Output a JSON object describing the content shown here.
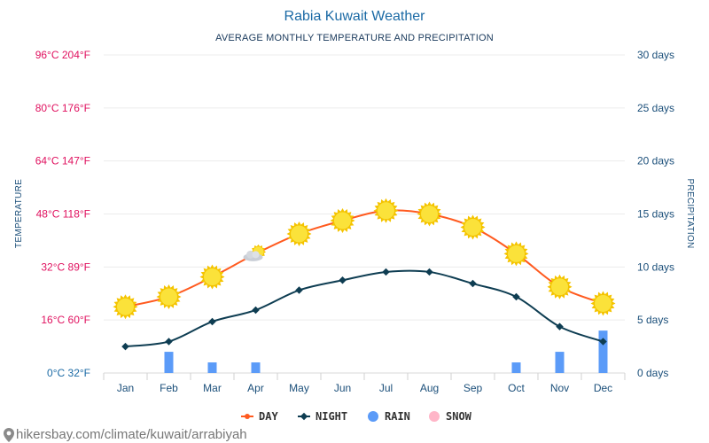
{
  "chart_data": {
    "type": "line",
    "title": "Rabia Kuwait Weather",
    "subtitle": "AVERAGE MONTHLY TEMPERATURE AND PRECIPITATION",
    "ylabel_left": "TEMPERATURE",
    "ylabel_right": "PRECIPITATION",
    "categories": [
      "Jan",
      "Feb",
      "Mar",
      "Apr",
      "May",
      "Jun",
      "Jul",
      "Aug",
      "Sep",
      "Oct",
      "Nov",
      "Dec"
    ],
    "left_axis": {
      "ylim": [
        0,
        96
      ],
      "ticks": [
        0,
        16,
        32,
        48,
        64,
        80,
        96
      ],
      "tick_labels": [
        "0°C 32°F",
        "16°C 60°F",
        "32°C 89°F",
        "48°C 118°F",
        "64°C 147°F",
        "80°C 176°F",
        "96°C 204°F"
      ]
    },
    "right_axis": {
      "ylim": [
        0,
        30
      ],
      "ticks": [
        0,
        5,
        10,
        15,
        20,
        25,
        30
      ],
      "tick_labels": [
        "0 days",
        "5 days",
        "10 days",
        "15 days",
        "20 days",
        "25 days",
        "30 days"
      ]
    },
    "series": [
      {
        "name": "DAY",
        "axis": "left",
        "color": "#ff5a1f",
        "values": [
          20,
          23,
          29,
          36,
          42,
          46,
          49,
          48,
          44,
          36,
          26,
          21
        ],
        "icons": [
          "sun-icon",
          "sun-icon",
          "sun-icon",
          "partly-cloudy-icon",
          "sun-icon",
          "sun-icon",
          "sun-icon",
          "sun-icon",
          "sun-icon",
          "sun-icon",
          "sun-icon",
          "sun-icon"
        ]
      },
      {
        "name": "NIGHT",
        "axis": "left",
        "color": "#0e3d52",
        "values": [
          8,
          9.5,
          15.5,
          19,
          25,
          28,
          30.5,
          30.5,
          27,
          23,
          14,
          9.5
        ]
      },
      {
        "name": "RAIN",
        "axis": "right",
        "type": "bar",
        "color": "#5b9bf8",
        "values": [
          0,
          2,
          1,
          1,
          0,
          0,
          0,
          0,
          0,
          1,
          2,
          4
        ]
      },
      {
        "name": "SNOW",
        "axis": "right",
        "type": "bar",
        "color": "#ffb6c8",
        "values": [
          0,
          0,
          0,
          0,
          0,
          0,
          0,
          0,
          0,
          0,
          0,
          0
        ]
      }
    ],
    "legend": {
      "position": "bottom-center",
      "items": [
        {
          "label": "DAY",
          "color": "#ff5a1f",
          "marker": "line-dot"
        },
        {
          "label": "NIGHT",
          "color": "#0e3d52",
          "marker": "line-diamond"
        },
        {
          "label": "RAIN",
          "color": "#5b9bf8",
          "marker": "circle"
        },
        {
          "label": "SNOW",
          "color": "#ffb6c8",
          "marker": "circle"
        }
      ]
    },
    "grid": true
  },
  "footer": {
    "source": "hikersbay.com/climate/kuwait/arrabiyah"
  }
}
